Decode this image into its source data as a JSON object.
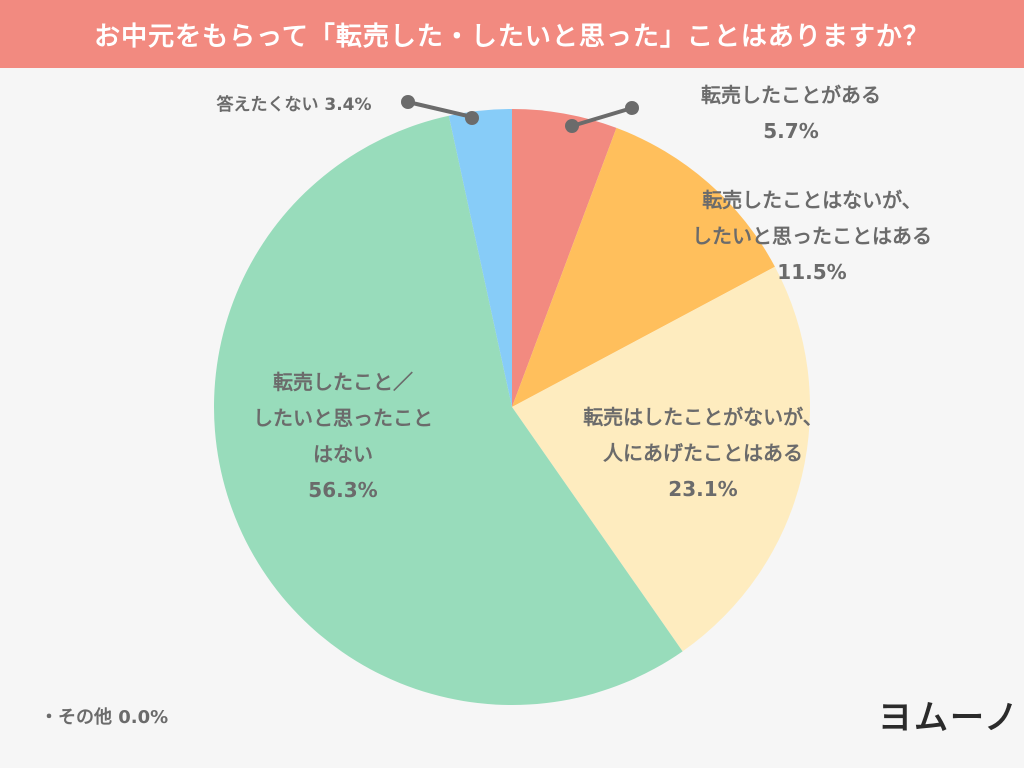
{
  "header": {
    "title": "お中元をもらって「転売した・したいと思った」ことはありますか？"
  },
  "chart_data": {
    "type": "pie",
    "title": "お中元をもらって「転売した・したいと思った」ことはありますか？",
    "start": "12 o'clock, clockwise",
    "slices": [
      {
        "label": "転売したことがある",
        "value": 5.7,
        "value_text": "5.7%",
        "color": "#f28a80"
      },
      {
        "label": "転売したことはないが、したいと思ったことはある",
        "value": 11.5,
        "value_text": "11.5%",
        "color": "#ffbf5c"
      },
      {
        "label": "転売はしたことがないが、人にあげたことはある",
        "value": 23.1,
        "value_text": "23.1%",
        "color": "#feecbf"
      },
      {
        "label": "転売したこと／したいと思ったことはない",
        "value": 56.3,
        "value_text": "56.3%",
        "color": "#98dcbb"
      },
      {
        "label": "答えたくない",
        "value": 3.4,
        "value_text": "3.4%",
        "color": "#87ccf8"
      }
    ],
    "other": {
      "label": "その他",
      "value": 0.0,
      "value_text": "0.0%"
    }
  },
  "labels": {
    "s0": {
      "lines": [
        "転売したことがある",
        "5.7%"
      ]
    },
    "s1": {
      "lines": [
        "転売したことはないが、",
        "したいと思ったことはある",
        "11.5%"
      ]
    },
    "s2": {
      "lines": [
        "転売はしたことがないが、",
        "人にあげたことはある",
        "23.1%"
      ]
    },
    "s3": {
      "lines": [
        "転売したこと／",
        "したいと思ったこと",
        "はない",
        "56.3%"
      ]
    },
    "s4": {
      "lines": [
        "答えたくない 3.4%"
      ]
    }
  },
  "note": {
    "text": "・その他 0.0%"
  },
  "logo": {
    "text": "ヨムーノ"
  }
}
